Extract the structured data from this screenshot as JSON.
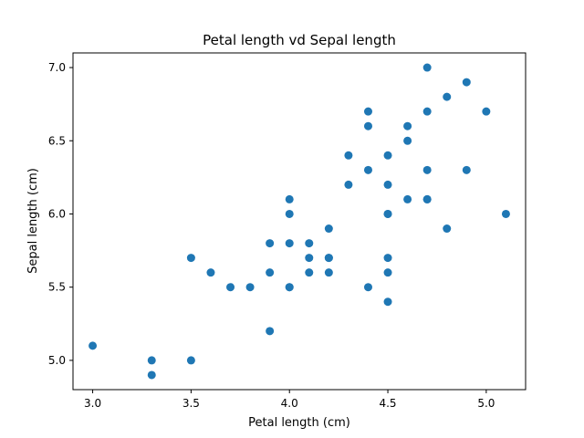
{
  "chart_data": {
    "type": "scatter",
    "title": "Petal length vd Sepal length",
    "xlabel": "Petal length (cm)",
    "ylabel": "Sepal length (cm)",
    "xlim": [
      2.9,
      5.2
    ],
    "ylim": [
      4.8,
      7.1
    ],
    "x_ticks": [
      "3.0",
      "3.5",
      "4.0",
      "4.5",
      "5.0"
    ],
    "y_ticks": [
      "5.0",
      "5.5",
      "6.0",
      "6.5",
      "7.0"
    ],
    "grid": false,
    "marker_color": "#1f77b4",
    "points": [
      [
        4.7,
        7.0
      ],
      [
        4.5,
        6.4
      ],
      [
        4.9,
        6.9
      ],
      [
        4.0,
        5.5
      ],
      [
        4.6,
        6.5
      ],
      [
        4.5,
        5.7
      ],
      [
        4.7,
        6.3
      ],
      [
        3.3,
        4.9
      ],
      [
        4.6,
        6.6
      ],
      [
        3.9,
        5.2
      ],
      [
        3.5,
        5.0
      ],
      [
        4.2,
        5.9
      ],
      [
        4.0,
        6.0
      ],
      [
        4.7,
        6.1
      ],
      [
        3.6,
        5.6
      ],
      [
        4.4,
        6.7
      ],
      [
        4.5,
        5.6
      ],
      [
        4.1,
        5.8
      ],
      [
        4.5,
        6.2
      ],
      [
        3.9,
        5.6
      ],
      [
        4.8,
        5.9
      ],
      [
        4.0,
        6.1
      ],
      [
        4.9,
        6.3
      ],
      [
        4.7,
        6.1
      ],
      [
        4.3,
        6.4
      ],
      [
        4.4,
        6.6
      ],
      [
        4.8,
        6.8
      ],
      [
        5.0,
        6.7
      ],
      [
        4.5,
        6.0
      ],
      [
        3.5,
        5.7
      ],
      [
        3.8,
        5.5
      ],
      [
        3.7,
        5.5
      ],
      [
        3.9,
        5.8
      ],
      [
        5.1,
        6.0
      ],
      [
        4.5,
        5.4
      ],
      [
        4.5,
        6.0
      ],
      [
        4.7,
        6.7
      ],
      [
        4.4,
        6.3
      ],
      [
        4.1,
        5.6
      ],
      [
        4.0,
        5.5
      ],
      [
        4.4,
        5.5
      ],
      [
        4.6,
        6.1
      ],
      [
        4.0,
        5.8
      ],
      [
        3.3,
        5.0
      ],
      [
        4.2,
        5.6
      ],
      [
        4.2,
        5.7
      ],
      [
        4.2,
        5.7
      ],
      [
        4.3,
        6.2
      ],
      [
        3.0,
        5.1
      ],
      [
        4.1,
        5.7
      ]
    ]
  }
}
